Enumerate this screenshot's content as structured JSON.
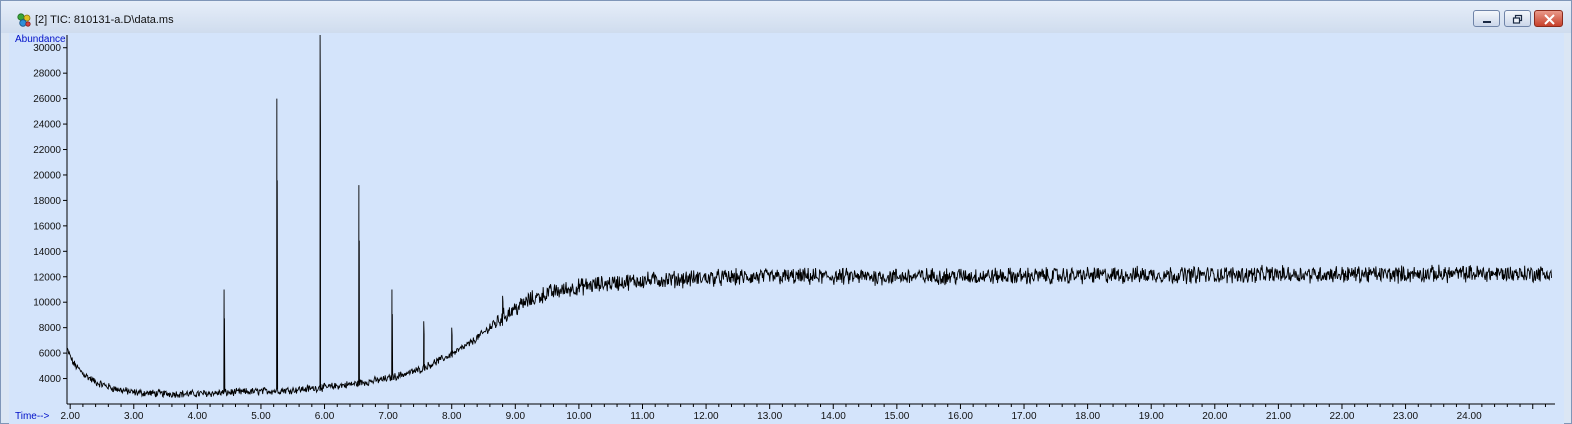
{
  "window": {
    "title": "[2] TIC: 810131-a.D\\data.ms",
    "icon": "chromatogram-app-icon",
    "controls": [
      "minimize-icon",
      "restore-icon",
      "close-icon"
    ]
  },
  "colors": {
    "plot_background": "#d4e4fb",
    "trace": "#000000",
    "axis_title": "#0010c8"
  },
  "chart_data": {
    "type": "line",
    "ylabel": "Abundance",
    "xlabel": "Time-->",
    "xlim": [
      1.95,
      25.35
    ],
    "ylim": [
      2000,
      31000
    ],
    "yticks": [
      4000,
      6000,
      8000,
      10000,
      12000,
      14000,
      16000,
      18000,
      20000,
      22000,
      24000,
      26000,
      28000,
      30000
    ],
    "xticks": [
      "2.00",
      "3.00",
      "4.00",
      "5.00",
      "6.00",
      "7.00",
      "8.00",
      "9.00",
      "10.00",
      "11.00",
      "12.00",
      "13.00",
      "14.00",
      "15.00",
      "16.00",
      "17.00",
      "18.00",
      "19.00",
      "20.00",
      "21.00",
      "22.00",
      "23.00",
      "24.00"
    ],
    "grid": false,
    "legend": "none",
    "series": [
      {
        "baseline_time": [
          1.95,
          2.05,
          2.2,
          2.4,
          2.7,
          3.0,
          3.5,
          4.0,
          4.5,
          5.0,
          5.5,
          6.0,
          6.5,
          7.0,
          7.5,
          8.0,
          8.3,
          8.6,
          8.9,
          9.2,
          9.5,
          10.0,
          10.5,
          11.0,
          11.5,
          12.0,
          13.0,
          14.0,
          15.0,
          16.0,
          17.0,
          18.0,
          19.0,
          20.0,
          21.0,
          22.0,
          23.0,
          24.0,
          25.0,
          25.3
        ],
        "baseline_abundance": [
          6300,
          5200,
          4400,
          3700,
          3200,
          2900,
          2800,
          2800,
          2900,
          3000,
          3100,
          3300,
          3600,
          4000,
          4700,
          5900,
          6800,
          8000,
          9200,
          10100,
          10700,
          11200,
          11500,
          11700,
          11800,
          11900,
          12000,
          12000,
          12000,
          12050,
          12050,
          12100,
          12150,
          12150,
          12200,
          12200,
          12200,
          12250,
          12250,
          12200
        ],
        "noise_amplitude": 700,
        "peaks_time": [
          4.42,
          5.25,
          5.93,
          6.54,
          7.06,
          7.56,
          8.0,
          8.8
        ],
        "peaks_abundance": [
          11000,
          26000,
          31300,
          19200,
          11000,
          8500,
          8000,
          10500
        ]
      }
    ]
  }
}
